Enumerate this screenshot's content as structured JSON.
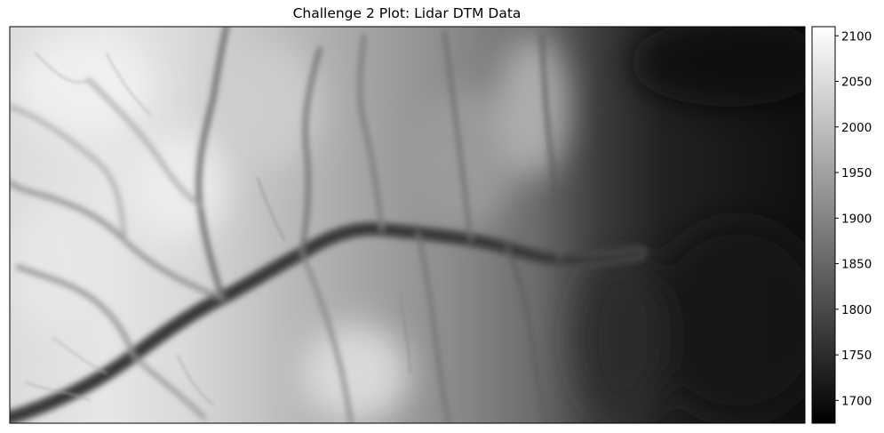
{
  "chart_data": {
    "type": "heatmap",
    "title": "Challenge 2 Plot: Lidar DTM Data",
    "xlabel": "",
    "ylabel": "",
    "x_ticks": [],
    "y_ticks": [],
    "colormap": "gray",
    "colorbar": {
      "range": [
        1675,
        2110
      ],
      "ticks": [
        1700,
        1750,
        1800,
        1850,
        1900,
        1950,
        2000,
        2050,
        2100
      ],
      "tick_labels": [
        "1700",
        "1750",
        "1800",
        "1850",
        "1900",
        "1950",
        "2000",
        "2050",
        "2100"
      ],
      "placement": "right"
    },
    "grid": false
  }
}
